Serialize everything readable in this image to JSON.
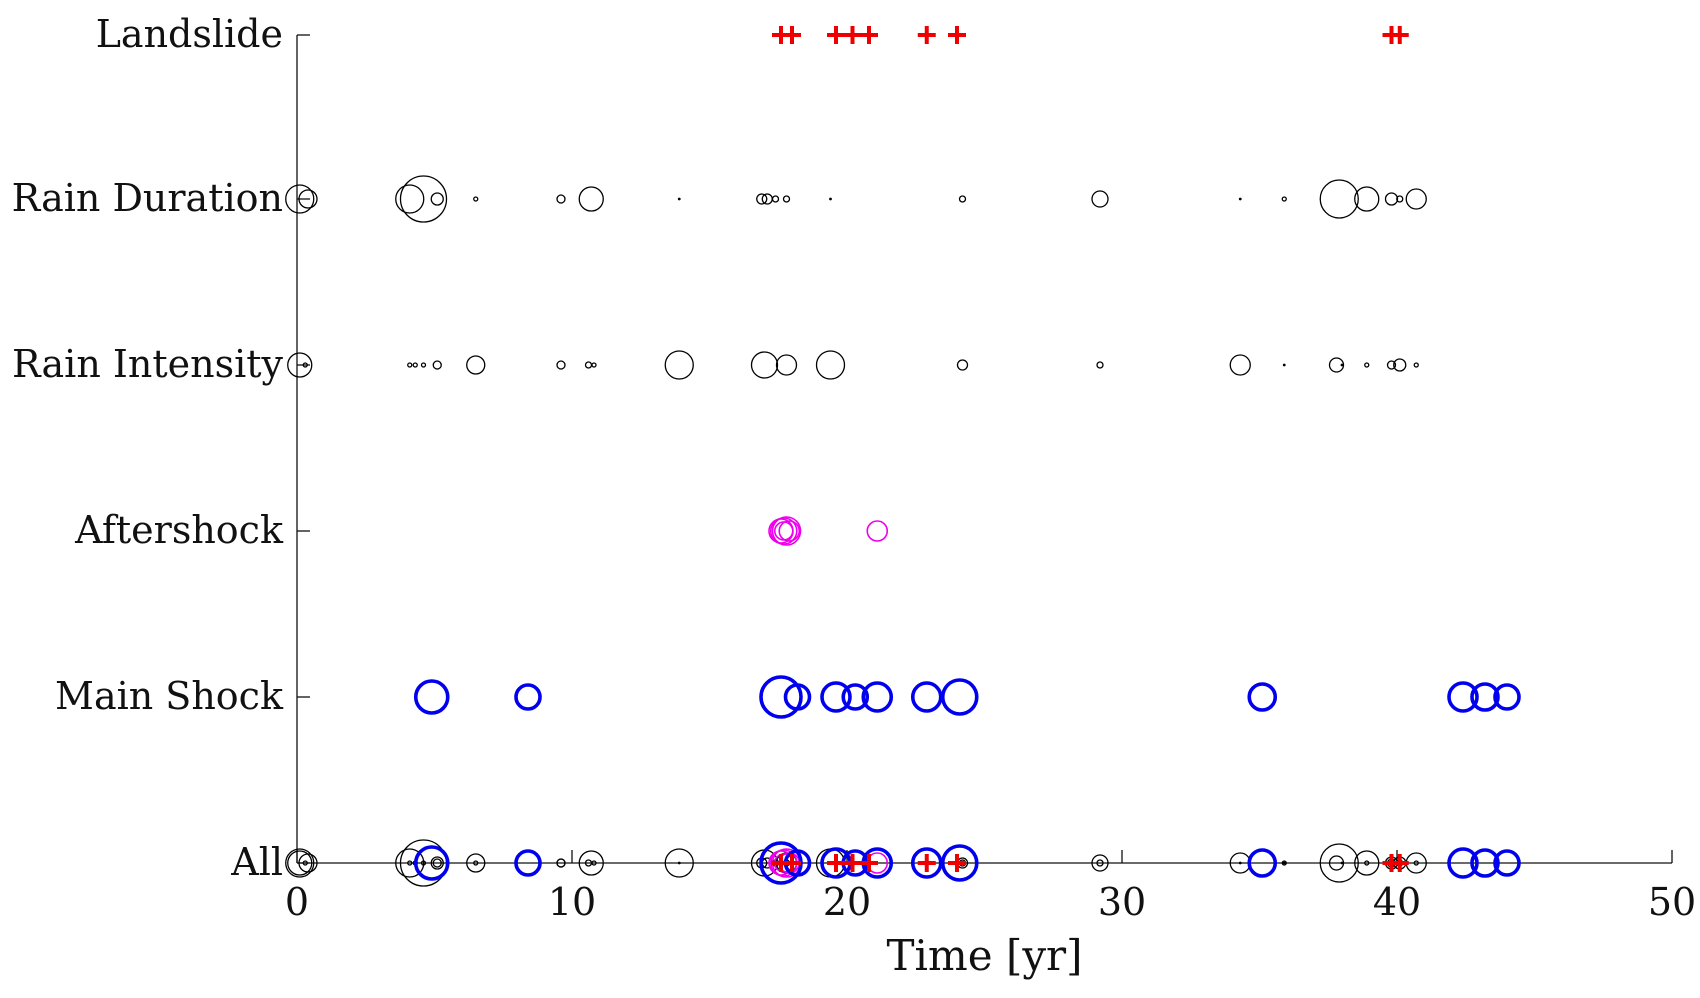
{
  "chart_data": {
    "type": "scatter",
    "title": "",
    "xlabel": "Time [yr]",
    "ylabel": "",
    "xlim": [
      0,
      50
    ],
    "xticks": [
      0,
      10,
      20,
      30,
      40,
      50
    ],
    "categories": [
      "All",
      "Main Shock",
      "Aftershock",
      "Rain Intensity",
      "Rain Duration",
      "Landslide"
    ],
    "grid": false,
    "legend": "none",
    "colors": {
      "rain": "#000000",
      "main_shock": "#0000ee",
      "aftershock": "#ee00ee",
      "landslide": "#ee0000"
    },
    "series": [
      {
        "category": "Rain Duration",
        "marker": "circle",
        "color": "#000000",
        "points": [
          {
            "x": 0.1,
            "size": 14
          },
          {
            "x": 0.4,
            "size": 9
          },
          {
            "x": 4.1,
            "size": 14
          },
          {
            "x": 4.6,
            "size": 23
          },
          {
            "x": 5.1,
            "size": 6
          },
          {
            "x": 6.5,
            "size": 2
          },
          {
            "x": 9.6,
            "size": 4
          },
          {
            "x": 10.7,
            "size": 12
          },
          {
            "x": 13.9,
            "size": 1
          },
          {
            "x": 16.9,
            "size": 5
          },
          {
            "x": 17.1,
            "size": 5
          },
          {
            "x": 17.4,
            "size": 3
          },
          {
            "x": 17.8,
            "size": 3
          },
          {
            "x": 19.4,
            "size": 1
          },
          {
            "x": 24.2,
            "size": 3
          },
          {
            "x": 29.2,
            "size": 8
          },
          {
            "x": 34.3,
            "size": 1
          },
          {
            "x": 35.9,
            "size": 2
          },
          {
            "x": 37.9,
            "size": 19
          },
          {
            "x": 38.9,
            "size": 12
          },
          {
            "x": 39.8,
            "size": 6
          },
          {
            "x": 40.1,
            "size": 3
          },
          {
            "x": 40.7,
            "size": 10
          }
        ]
      },
      {
        "category": "Rain Intensity",
        "marker": "circle",
        "color": "#000000",
        "points": [
          {
            "x": 0.1,
            "size": 12
          },
          {
            "x": 0.3,
            "size": 2
          },
          {
            "x": 4.1,
            "size": 2
          },
          {
            "x": 4.3,
            "size": 2
          },
          {
            "x": 4.6,
            "size": 2
          },
          {
            "x": 5.1,
            "size": 4
          },
          {
            "x": 6.5,
            "size": 9
          },
          {
            "x": 9.6,
            "size": 4
          },
          {
            "x": 10.6,
            "size": 3
          },
          {
            "x": 10.8,
            "size": 2
          },
          {
            "x": 13.9,
            "size": 14
          },
          {
            "x": 17.0,
            "size": 13
          },
          {
            "x": 17.8,
            "size": 10
          },
          {
            "x": 19.4,
            "size": 14
          },
          {
            "x": 24.2,
            "size": 5
          },
          {
            "x": 29.2,
            "size": 3
          },
          {
            "x": 34.3,
            "size": 10
          },
          {
            "x": 35.9,
            "size": 1
          },
          {
            "x": 37.8,
            "size": 7
          },
          {
            "x": 38.0,
            "size": 1
          },
          {
            "x": 38.9,
            "size": 2
          },
          {
            "x": 39.8,
            "size": 4
          },
          {
            "x": 40.1,
            "size": 6
          },
          {
            "x": 40.7,
            "size": 2
          }
        ]
      },
      {
        "category": "Aftershock",
        "marker": "circle",
        "color": "#ee00ee",
        "points": [
          {
            "x": 17.6,
            "size": 12
          },
          {
            "x": 17.7,
            "size": 13
          },
          {
            "x": 17.8,
            "size": 14
          },
          {
            "x": 17.9,
            "size": 10
          },
          {
            "x": 17.7,
            "size": 9
          },
          {
            "x": 21.1,
            "size": 10
          }
        ]
      },
      {
        "category": "Main Shock",
        "marker": "circle",
        "color": "#0000ee",
        "points": [
          {
            "x": 4.9,
            "size": 16
          },
          {
            "x": 8.4,
            "size": 12
          },
          {
            "x": 17.6,
            "size": 20
          },
          {
            "x": 18.2,
            "size": 12
          },
          {
            "x": 19.6,
            "size": 14
          },
          {
            "x": 20.3,
            "size": 12
          },
          {
            "x": 21.1,
            "size": 14
          },
          {
            "x": 22.9,
            "size": 14
          },
          {
            "x": 24.1,
            "size": 17
          },
          {
            "x": 35.1,
            "size": 13
          },
          {
            "x": 42.4,
            "size": 14
          },
          {
            "x": 43.2,
            "size": 13
          },
          {
            "x": 44.0,
            "size": 12
          }
        ]
      },
      {
        "category": "Landslide",
        "marker": "plus",
        "color": "#ee0000",
        "points": [
          {
            "x": 17.6
          },
          {
            "x": 18.0
          },
          {
            "x": 19.6
          },
          {
            "x": 20.2
          },
          {
            "x": 20.8
          },
          {
            "x": 22.9
          },
          {
            "x": 24.0
          },
          {
            "x": 39.8
          },
          {
            "x": 40.1
          }
        ]
      }
    ]
  }
}
